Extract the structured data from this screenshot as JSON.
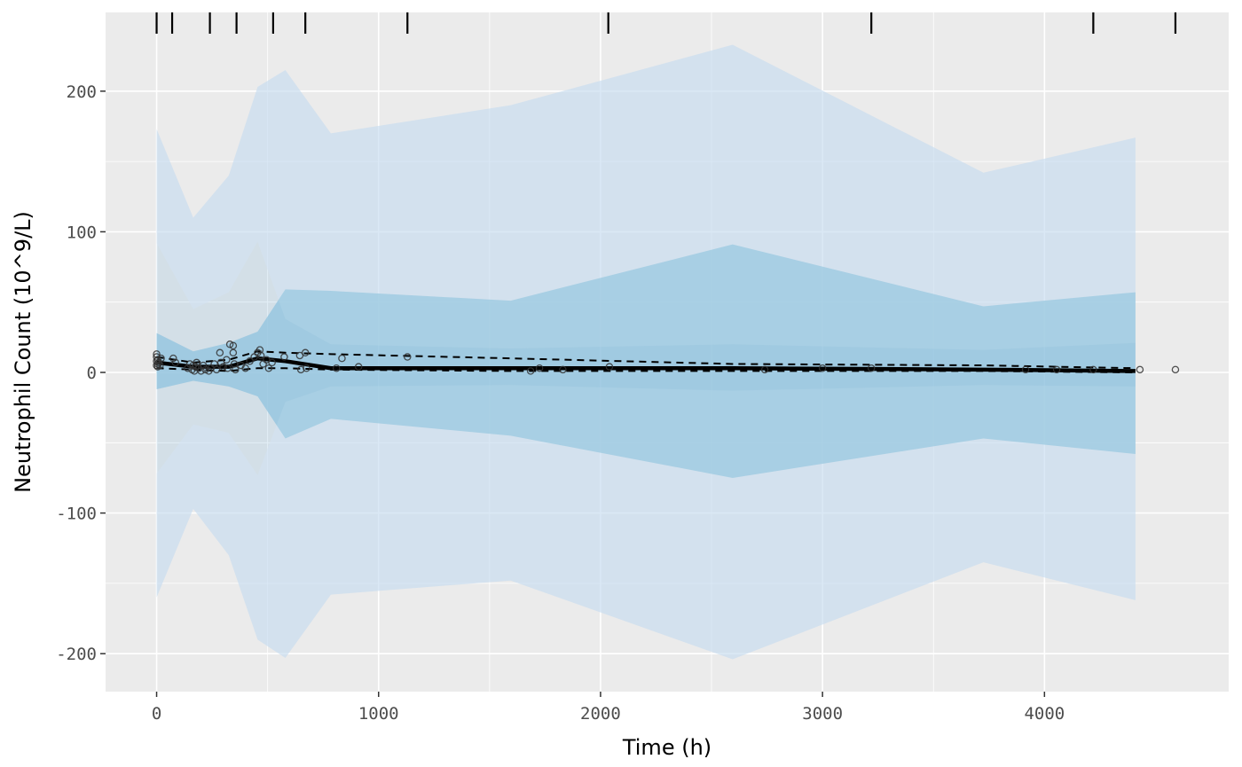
{
  "chart_data": {
    "type": "line",
    "xlabel": "Time (h)",
    "ylabel": "Neutrophil Count (10^9/L)",
    "xlim": [
      -230,
      4830
    ],
    "ylim": [
      -227,
      256
    ],
    "x_ticks": [
      0,
      1000,
      2000,
      3000,
      4000
    ],
    "y_ticks": [
      -200,
      -100,
      0,
      100,
      200
    ],
    "grid": true,
    "colors": {
      "panel": "#ebebeb",
      "grid": "#ffffff",
      "outer_band": "#c6dbef",
      "inner_band": "#9ecae1",
      "median_band": "#6baed6",
      "line": "#000000"
    },
    "bin_x": [
      0,
      165,
      325,
      455,
      580,
      785,
      1595,
      2595,
      3725,
      4410
    ],
    "bands": [
      {
        "lo_upper": [
          92,
          45,
          57,
          93,
          38,
          20,
          17,
          20,
          16,
          21
        ],
        "hi_upper": [
          173,
          110,
          140,
          203,
          215,
          170,
          190,
          233,
          142,
          167
        ],
        "lo_lower": [
          -160,
          -97,
          -130,
          -190,
          -203,
          -158,
          -148,
          -204,
          -135,
          -162
        ],
        "hi_lower": [
          -72,
          -37,
          -43,
          -73,
          -21,
          -10,
          -9,
          -13,
          -9,
          -10
        ]
      },
      {
        "upper": [
          28,
          15,
          21,
          29,
          59,
          58,
          51,
          91,
          47,
          57
        ],
        "lower": [
          -12,
          -6,
          -10,
          -17,
          -47,
          -33,
          -45,
          -75,
          -47,
          -58
        ]
      }
    ],
    "observed_median": [
      7,
      4,
      4,
      10,
      8,
      3,
      3,
      3,
      2,
      1
    ],
    "observed_p95": [
      11,
      7,
      9,
      15,
      14,
      13,
      10,
      6,
      5,
      3
    ],
    "observed_p5": [
      3,
      2,
      1,
      3,
      3,
      2,
      1,
      1,
      1,
      0
    ],
    "points": [
      [
        0,
        5
      ],
      [
        0,
        8
      ],
      [
        0,
        11
      ],
      [
        0,
        13
      ],
      [
        5,
        4
      ],
      [
        5,
        6
      ],
      [
        5,
        9
      ],
      [
        10,
        7
      ],
      [
        15,
        5
      ],
      [
        20,
        10
      ],
      [
        75,
        10
      ],
      [
        85,
        7
      ],
      [
        140,
        3
      ],
      [
        150,
        6
      ],
      [
        160,
        2
      ],
      [
        165,
        5
      ],
      [
        170,
        1
      ],
      [
        175,
        4
      ],
      [
        180,
        7
      ],
      [
        190,
        3
      ],
      [
        200,
        1
      ],
      [
        210,
        5
      ],
      [
        220,
        2
      ],
      [
        235,
        1
      ],
      [
        245,
        3
      ],
      [
        260,
        6
      ],
      [
        270,
        2
      ],
      [
        285,
        14
      ],
      [
        290,
        7
      ],
      [
        300,
        4
      ],
      [
        315,
        9
      ],
      [
        320,
        3
      ],
      [
        330,
        20
      ],
      [
        345,
        19
      ],
      [
        345,
        14
      ],
      [
        350,
        6
      ],
      [
        355,
        2
      ],
      [
        380,
        5
      ],
      [
        400,
        3
      ],
      [
        420,
        8
      ],
      [
        440,
        11
      ],
      [
        455,
        14
      ],
      [
        465,
        16
      ],
      [
        470,
        12
      ],
      [
        480,
        6
      ],
      [
        495,
        9
      ],
      [
        505,
        3
      ],
      [
        520,
        7
      ],
      [
        575,
        11
      ],
      [
        645,
        12
      ],
      [
        650,
        2
      ],
      [
        670,
        14
      ],
      [
        675,
        3
      ],
      [
        810,
        3
      ],
      [
        835,
        10
      ],
      [
        910,
        4
      ],
      [
        1130,
        11
      ],
      [
        1685,
        1
      ],
      [
        1725,
        3
      ],
      [
        1830,
        2
      ],
      [
        2040,
        4
      ],
      [
        2740,
        2
      ],
      [
        3000,
        3
      ],
      [
        3220,
        3
      ],
      [
        3915,
        2
      ],
      [
        4055,
        2
      ],
      [
        4220,
        2
      ],
      [
        4430,
        2
      ],
      [
        4590,
        2
      ]
    ],
    "rug_x": [
      0,
      70,
      240,
      360,
      525,
      670,
      1130,
      2035,
      3220,
      4220,
      4590
    ]
  }
}
